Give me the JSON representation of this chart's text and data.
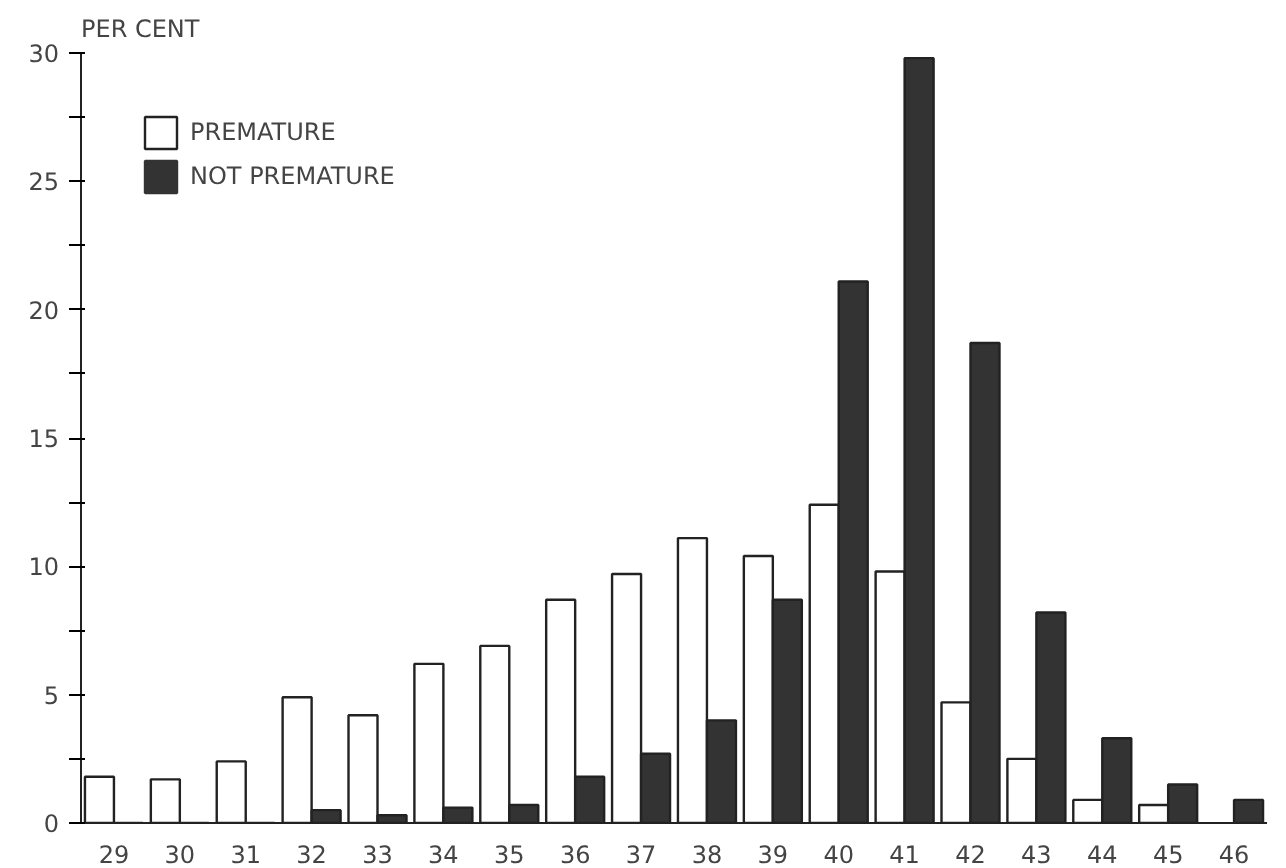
{
  "chart_data": {
    "type": "bar",
    "ylabel": "PER CENT",
    "categories": [
      "29",
      "30",
      "31",
      "32",
      "33",
      "34",
      "35",
      "36",
      "37",
      "38",
      "39",
      "40",
      "41",
      "42",
      "43",
      "44",
      "45",
      "46"
    ],
    "series": [
      {
        "name": "PREMATURE",
        "color": "#ffffff",
        "values": [
          1.8,
          1.7,
          2.4,
          4.9,
          4.2,
          6.2,
          6.9,
          8.7,
          9.7,
          11.1,
          10.4,
          12.4,
          9.8,
          4.7,
          2.5,
          0.9,
          0.7,
          0
        ]
      },
      {
        "name": "NOT PREMATURE",
        "color": "#333333",
        "values": [
          0,
          0,
          0,
          0.5,
          0.3,
          0.6,
          0.7,
          1.8,
          2.7,
          4.0,
          8.7,
          21.1,
          29.8,
          18.7,
          8.2,
          3.3,
          1.5,
          0.9
        ]
      }
    ],
    "ylim": [
      0,
      30
    ],
    "yticks": [
      0,
      {
        "value": 2.5,
        "label": null
      },
      5,
      {
        "value": 7.5,
        "label": null
      },
      10,
      {
        "value": 12.5,
        "label": null
      },
      15,
      {
        "value": 17.5,
        "label": null
      },
      20,
      {
        "value": 22.5,
        "label": null
      },
      25,
      {
        "value": 27.5,
        "label": null
      },
      30
    ],
    "grid": false,
    "legend": "top left"
  }
}
